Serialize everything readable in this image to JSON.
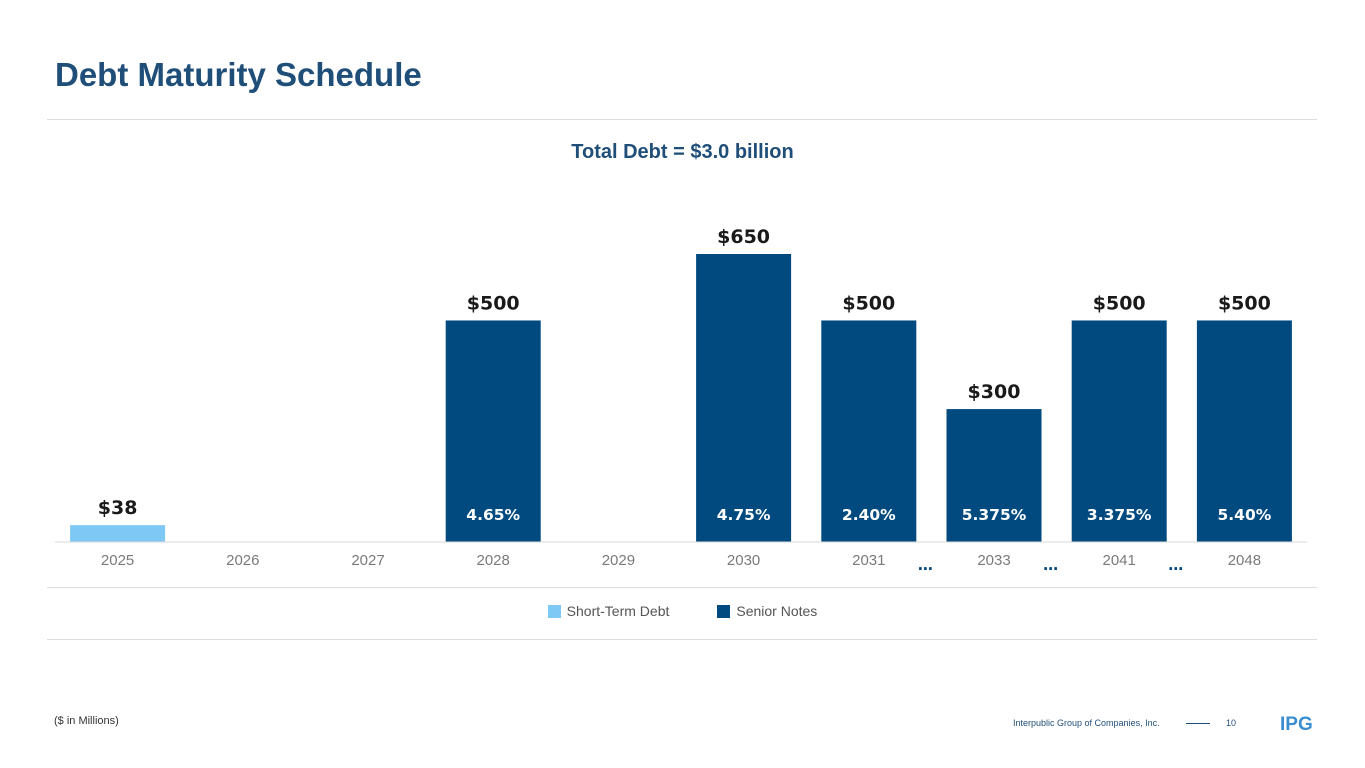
{
  "page": {
    "title": "Debt Maturity Schedule",
    "subtitle": "Total Debt = $3.0 billion",
    "note": "($ in Millions)",
    "footer_company": "Interpublic Group of Companies, Inc.",
    "page_number": "10",
    "logo_text": "IPG"
  },
  "colors": {
    "short_term": "#7ec8f5",
    "senior_notes": "#004a7f",
    "title": "#1f4e79"
  },
  "chart_data": {
    "type": "bar",
    "title": "Total Debt = $3.0 billion",
    "xlabel": "",
    "ylabel": "$ in Millions",
    "ylim": [
      0,
      650
    ],
    "grid": false,
    "legend_position": "bottom-center",
    "categories": [
      "2025",
      "2026",
      "2027",
      "2028",
      "2029",
      "2030",
      "2031",
      "2033",
      "2041",
      "2048"
    ],
    "series": [
      {
        "name": "Short-Term Debt",
        "values": [
          38,
          null,
          null,
          null,
          null,
          null,
          null,
          null,
          null,
          null
        ]
      },
      {
        "name": "Senior Notes",
        "values": [
          null,
          null,
          null,
          500,
          null,
          650,
          500,
          300,
          500,
          500
        ]
      }
    ],
    "value_labels": [
      "$38",
      "",
      "",
      "$500",
      "",
      "$650",
      "$500",
      "$300",
      "$500",
      "$500"
    ],
    "rate_labels": [
      "",
      "",
      "",
      "4.65%",
      "",
      "4.75%",
      "2.40%",
      "5.375%",
      "3.375%",
      "5.40%"
    ],
    "gap_marker": "…",
    "gaps_after": [
      "2031",
      "2033",
      "2041"
    ]
  }
}
